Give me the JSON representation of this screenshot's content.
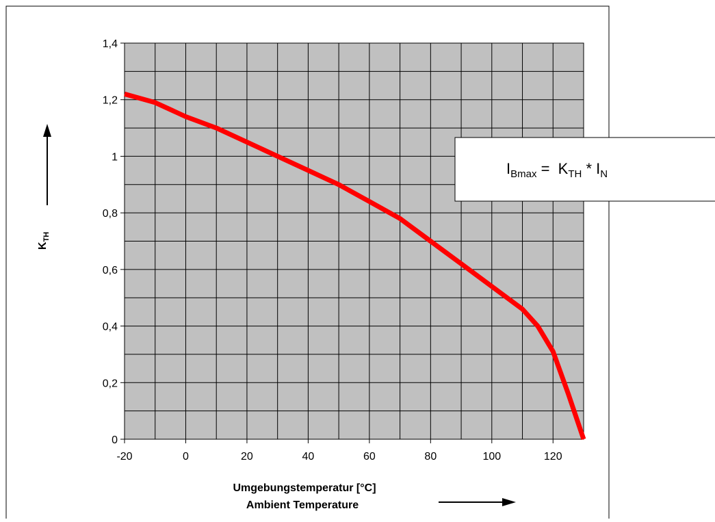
{
  "chart_data": {
    "type": "line",
    "title": "",
    "xlabel_de": "Umgebungstemperatur  [°C]",
    "xlabel_en": "Ambient Temperature",
    "ylabel_main": "K",
    "ylabel_sub": "TH",
    "xlim": [
      -20,
      130
    ],
    "ylim": [
      0,
      1.4
    ],
    "x_ticks": [
      "-20",
      "0",
      "20",
      "40",
      "60",
      "80",
      "100",
      "120"
    ],
    "x_tick_values": [
      -20,
      0,
      20,
      40,
      60,
      80,
      100,
      120
    ],
    "y_ticks": [
      "0",
      "0,2",
      "0,4",
      "0,6",
      "0,8",
      "1",
      "1,2",
      "1,4"
    ],
    "y_tick_values": [
      0,
      0.2,
      0.4,
      0.6,
      0.8,
      1.0,
      1.2,
      1.4
    ],
    "grid": true,
    "grid_x_step": 10,
    "grid_y_step": 0.1,
    "plot_background": "#c0c0c0",
    "series": [
      {
        "color": "#ff0000",
        "x": [
          -20,
          -10,
          0,
          10,
          20,
          30,
          40,
          50,
          60,
          70,
          80,
          90,
          100,
          110,
          115,
          120,
          125,
          130
        ],
        "y": [
          1.22,
          1.19,
          1.14,
          1.1,
          1.05,
          1.0,
          0.95,
          0.9,
          0.84,
          0.78,
          0.7,
          0.62,
          0.54,
          0.46,
          0.4,
          0.31,
          0.16,
          0.0
        ]
      }
    ],
    "annotation": {
      "main1": "I",
      "sub1": "Bmax",
      "eq": " =  ",
      "main2": "K",
      "sub2": "TH",
      "star": " * ",
      "main3": "I",
      "sub3": "N"
    }
  }
}
